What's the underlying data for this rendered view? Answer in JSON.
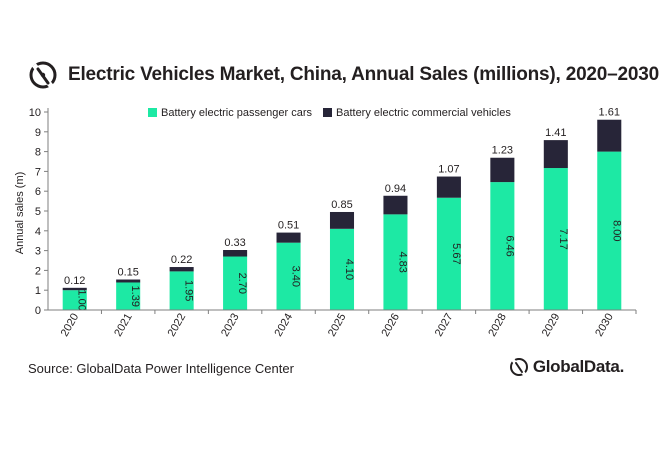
{
  "header": {
    "title": "Electric Vehicles Market, China, Annual Sales (millions), 2020–2030"
  },
  "footer": {
    "source": "Source: GlobalData Power Intelligence Center",
    "brand": "GlobalData."
  },
  "icons": {
    "logo": "globaldata-logo-icon"
  },
  "colors": {
    "passenger": "#1de9a4",
    "commercial": "#272538",
    "axis": "#7f7f7f",
    "text": "#231f20"
  },
  "chart_data": {
    "type": "bar",
    "stacked": true,
    "title": "Electric Vehicles Market, China, Annual Sales (millions), 2020–2030",
    "xlabel": "",
    "ylabel": "Annual sales (m)",
    "ylim": [
      0,
      10
    ],
    "yticks": [
      "0",
      "1",
      "2",
      "3",
      "4",
      "5",
      "6",
      "7",
      "8",
      "9",
      "10"
    ],
    "legend_position": "top",
    "categories": [
      "2020",
      "2021",
      "2022",
      "2023",
      "2024",
      "2025",
      "2026",
      "2027",
      "2028",
      "2029",
      "2030"
    ],
    "series": [
      {
        "name": "Battery electric passenger cars",
        "color": "#1de9a4",
        "values": [
          1.0,
          1.39,
          1.95,
          2.7,
          3.4,
          4.1,
          4.83,
          5.67,
          6.46,
          7.17,
          8.0
        ],
        "labels": [
          "1.00",
          "1.39",
          "1.95",
          "2.70",
          "3.40",
          "4.10",
          "4.83",
          "5.67",
          "6.46",
          "7.17",
          "8.00"
        ]
      },
      {
        "name": "Battery electric commercial vehicles",
        "color": "#272538",
        "values": [
          0.12,
          0.15,
          0.22,
          0.33,
          0.51,
          0.85,
          0.94,
          1.07,
          1.23,
          1.41,
          1.61
        ],
        "labels": [
          "0.12",
          "0.15",
          "0.22",
          "0.33",
          "0.51",
          "0.85",
          "0.94",
          "1.07",
          "1.23",
          "1.41",
          "1.61"
        ]
      }
    ]
  }
}
